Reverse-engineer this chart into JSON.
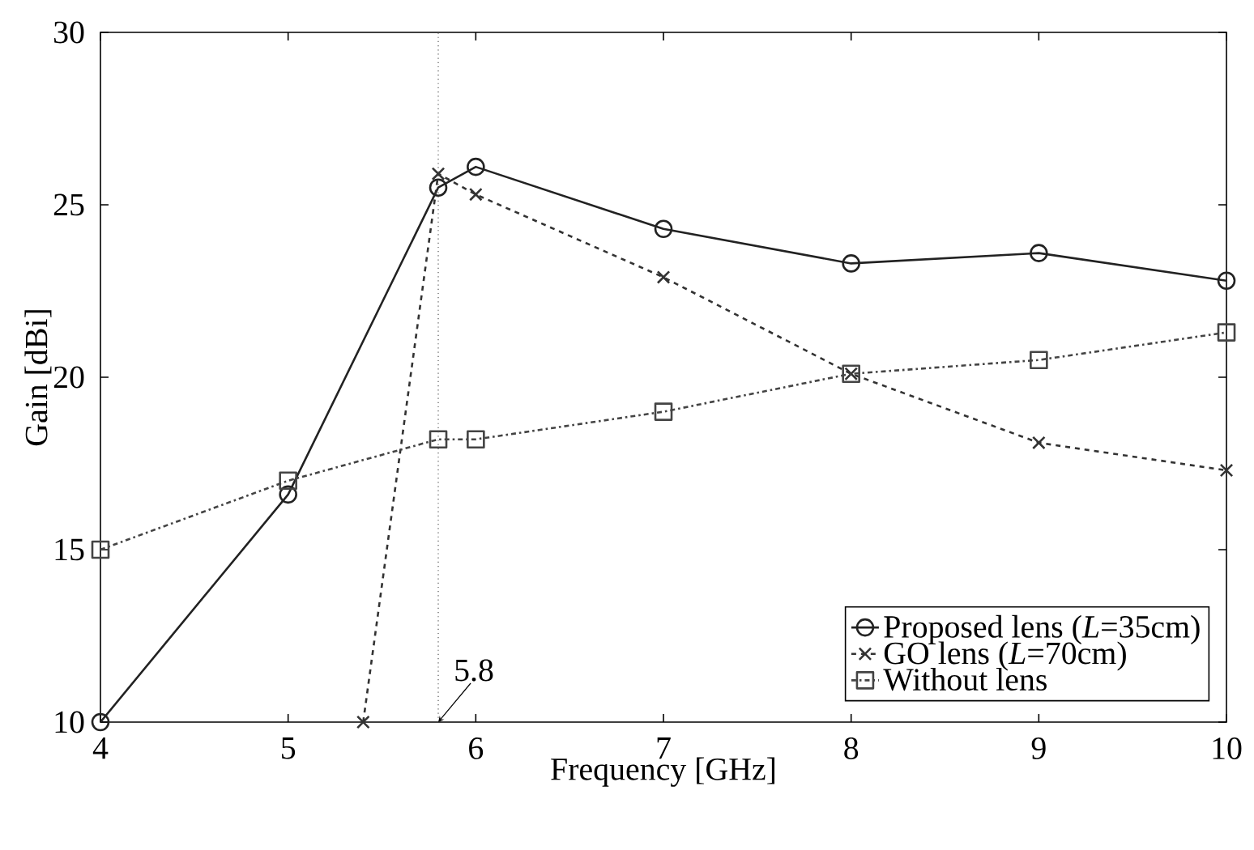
{
  "chart_data": {
    "type": "line",
    "xlabel": "Frequency [GHz]",
    "ylabel": "Gain [dBi]",
    "xlim": [
      4,
      10
    ],
    "ylim": [
      10,
      30
    ],
    "xticks": [
      4,
      5,
      6,
      7,
      8,
      9,
      10
    ],
    "yticks": [
      10,
      15,
      20,
      25,
      30
    ],
    "grid": false,
    "legend": "bottom right",
    "series": [
      {
        "name": "Proposed lens (*L*=35cm)",
        "color": "#222222",
        "marker": "circle",
        "line_style": "solid",
        "x": [
          4,
          5,
          5.8,
          6,
          7,
          8,
          9,
          10
        ],
        "values": [
          10,
          16.6,
          25.5,
          26.1,
          24.3,
          23.3,
          23.6,
          22.8
        ]
      },
      {
        "name": "GO lens (*L*=70cm)",
        "color": "#333333",
        "marker": "cross",
        "line_style": "dashed",
        "x": [
          5.4,
          5.8,
          6,
          7,
          8,
          9,
          10
        ],
        "values": [
          10,
          25.9,
          25.3,
          22.9,
          20.1,
          18.1,
          17.3
        ]
      },
      {
        "name": "Without lens",
        "color": "#444444",
        "marker": "square",
        "line_style": "dashdot",
        "x": [
          4,
          5,
          5.8,
          6,
          7,
          8,
          9,
          10
        ],
        "values": [
          15,
          17,
          18.2,
          18.2,
          19,
          20.1,
          20.5,
          21.3
        ]
      }
    ],
    "ref_lines": [
      {
        "axis": "x",
        "value": 5.8,
        "line_style": "dotted",
        "color": "#555555"
      }
    ],
    "annotations": [
      {
        "text": "5.8",
        "x": 5.8,
        "y": 10
      }
    ]
  }
}
